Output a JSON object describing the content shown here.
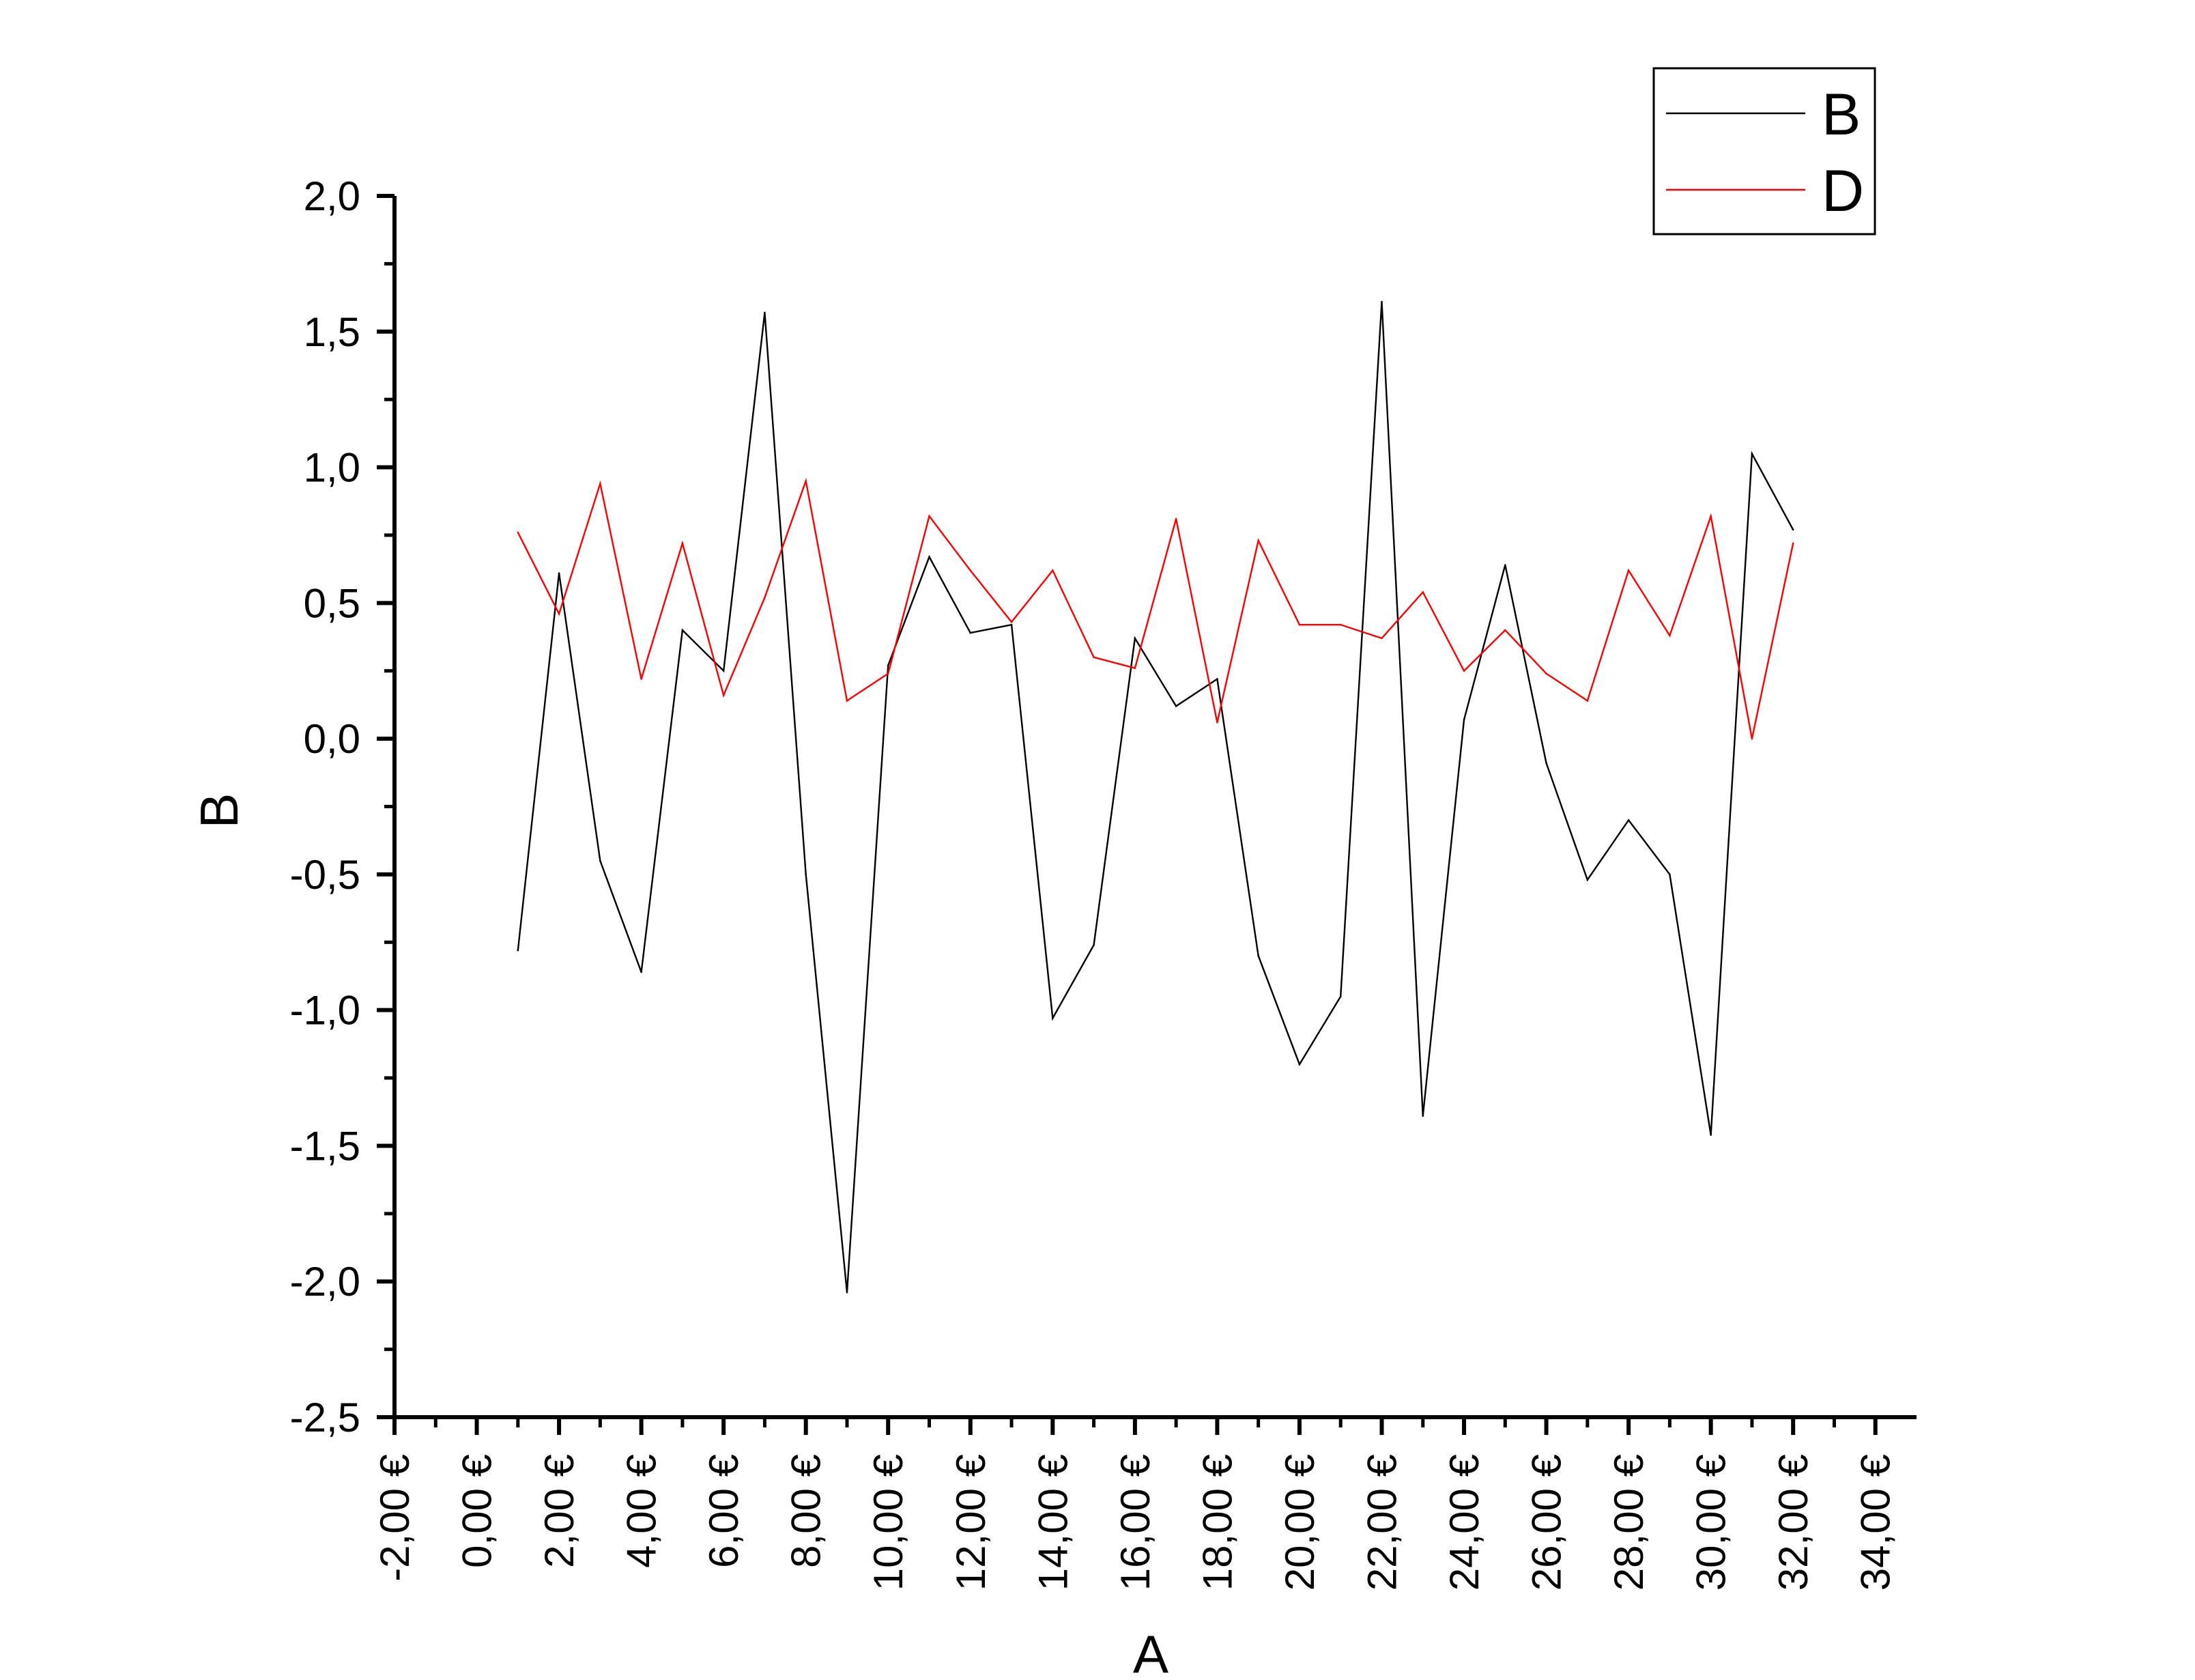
{
  "chart_data": {
    "type": "line",
    "xlabel": "A",
    "ylabel": "B",
    "xlim": [
      -2,
      35
    ],
    "ylim": [
      -2.5,
      2.0
    ],
    "x_ticks": [
      -2,
      0,
      2,
      4,
      6,
      8,
      10,
      12,
      14,
      16,
      18,
      20,
      22,
      24,
      26,
      28,
      30,
      32,
      34
    ],
    "x_tick_labels": [
      "-2,00 €",
      "0,00 €",
      "2,00 €",
      "4,00 €",
      "6,00 €",
      "8,00 €",
      "10,00 €",
      "12,00 €",
      "14,00 €",
      "16,00 €",
      "18,00 €",
      "20,00 €",
      "22,00 €",
      "24,00 €",
      "26,00 €",
      "28,00 €",
      "30,00 €",
      "32,00 €",
      "34,00 €"
    ],
    "y_ticks": [
      -2.5,
      -2.0,
      -1.5,
      -1.0,
      -0.5,
      0.0,
      0.5,
      1.0,
      1.5,
      2.0
    ],
    "y_tick_labels": [
      "-2,5",
      "-2,0",
      "-1,5",
      "-1,0",
      "-0,5",
      "0,0",
      "0,5",
      "1,0",
      "1,5",
      "2,0"
    ],
    "legend_position": "top-right",
    "grid": false,
    "x": [
      1,
      2,
      3,
      4,
      5,
      6,
      7,
      8,
      9,
      10,
      11,
      12,
      13,
      14,
      15,
      16,
      17,
      18,
      19,
      20,
      21,
      22,
      23,
      24,
      25,
      26,
      27,
      28,
      29,
      30,
      31,
      32
    ],
    "series": [
      {
        "name": "B",
        "color": "#000000",
        "values": [
          -0.78,
          0.61,
          -0.45,
          -0.86,
          0.4,
          0.25,
          1.57,
          -0.5,
          -2.04,
          0.27,
          0.67,
          0.39,
          0.42,
          -1.03,
          -0.76,
          0.37,
          0.12,
          0.22,
          -0.8,
          -1.2,
          -0.95,
          1.61,
          -1.39,
          0.07,
          0.64,
          -0.09,
          -0.52,
          -0.3,
          -0.5,
          -1.46,
          1.05,
          0.77
        ]
      },
      {
        "name": "D",
        "color": "#ff0000",
        "values": [
          0.76,
          0.46,
          0.94,
          0.22,
          0.72,
          0.16,
          0.52,
          0.95,
          0.14,
          0.24,
          0.82,
          0.62,
          0.43,
          0.62,
          0.3,
          0.26,
          0.81,
          0.06,
          0.73,
          0.42,
          0.42,
          0.37,
          0.54,
          0.25,
          0.4,
          0.24,
          0.14,
          0.62,
          0.38,
          0.82,
          0.0,
          0.72
        ]
      }
    ]
  }
}
